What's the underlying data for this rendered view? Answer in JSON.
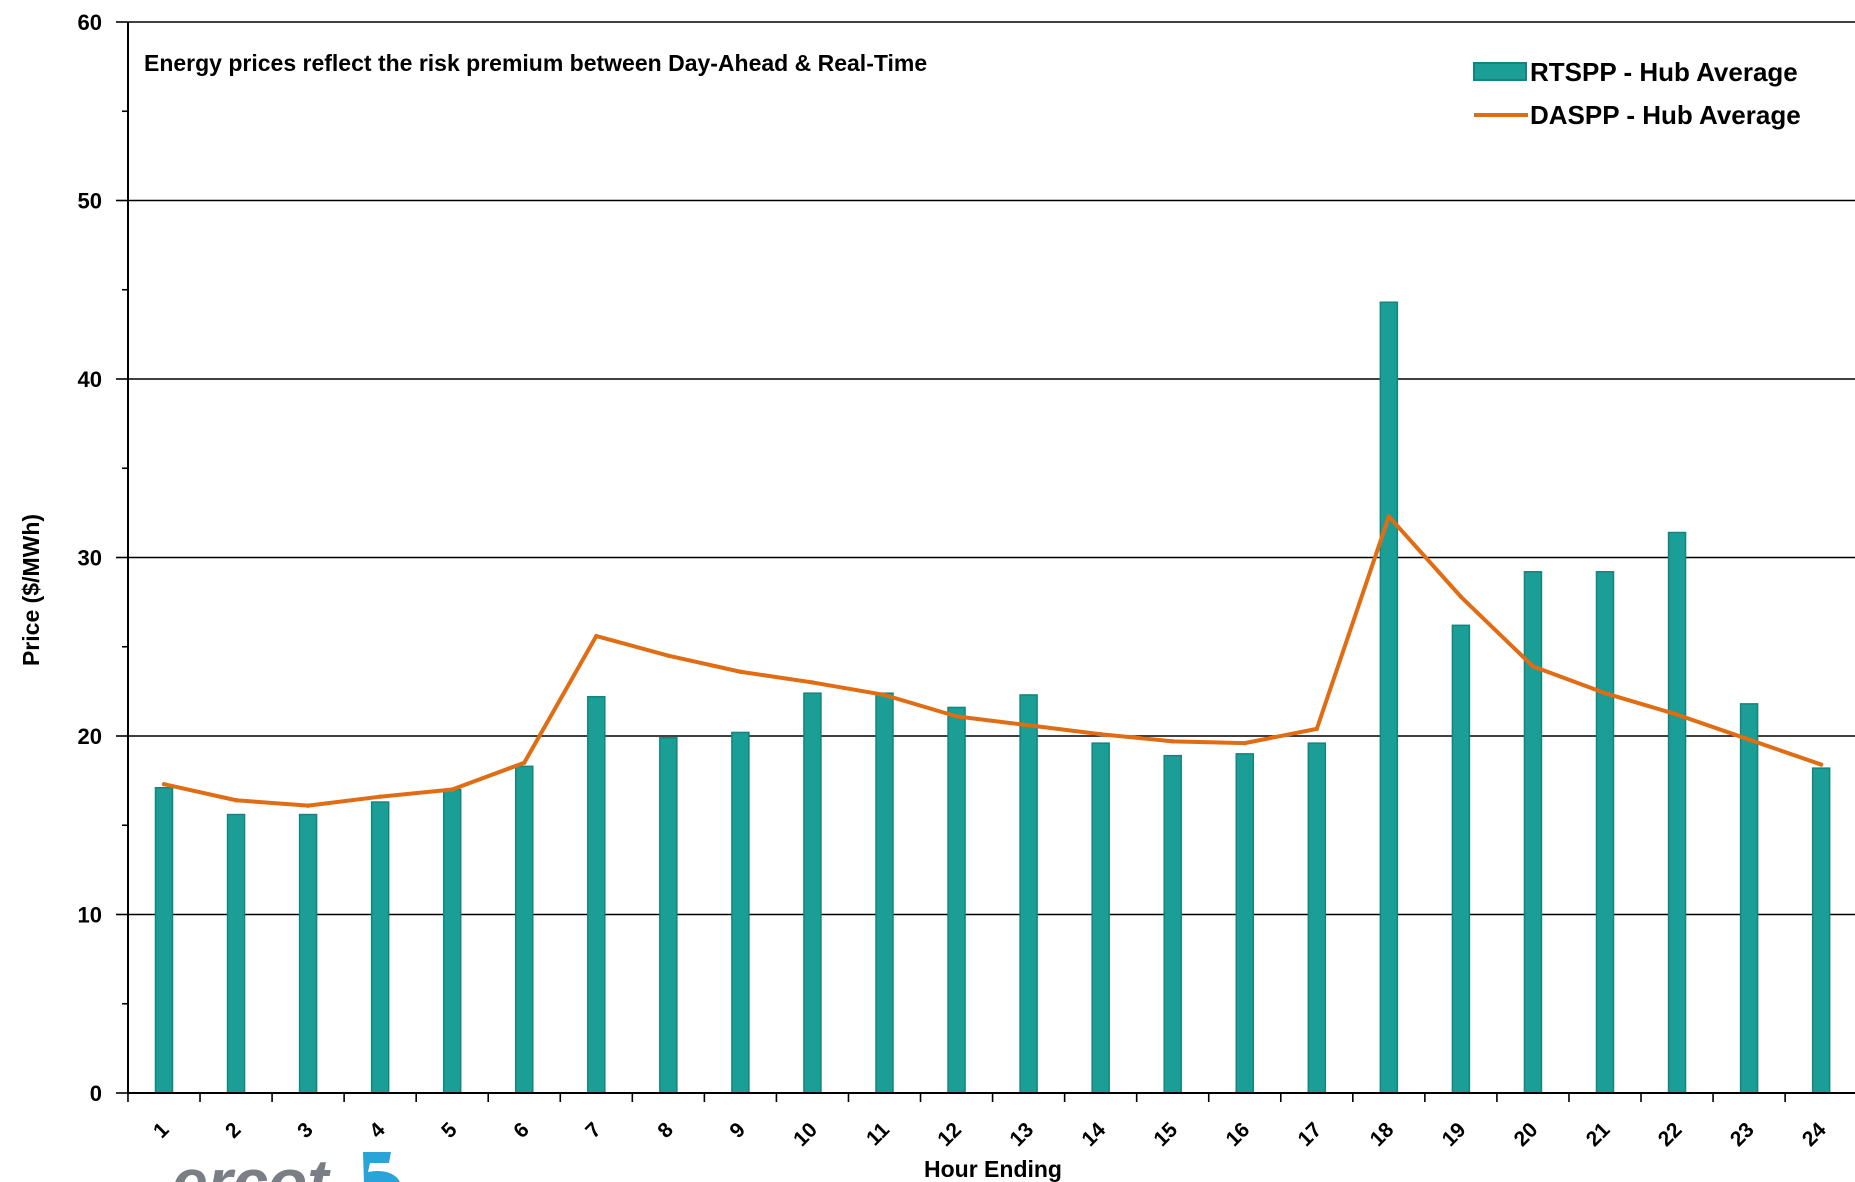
{
  "chart_data": {
    "type": "bar",
    "annotation": "Energy prices reflect the risk premium between Day-Ahead & Real-Time",
    "xlabel": "Hour Ending",
    "ylabel": "Price ($/MWh)",
    "ylim": [
      0,
      60
    ],
    "yticks": [
      0,
      10,
      20,
      30,
      40,
      50,
      60
    ],
    "grid": true,
    "legend_position": "top-right",
    "categories": [
      "1",
      "2",
      "3",
      "4",
      "5",
      "6",
      "7",
      "8",
      "9",
      "10",
      "11",
      "12",
      "13",
      "14",
      "15",
      "16",
      "17",
      "18",
      "19",
      "20",
      "21",
      "22",
      "23",
      "24"
    ],
    "series": [
      {
        "name": "RTSPP - Hub Average",
        "type": "bar",
        "color": "#1a9e96",
        "values": [
          17.1,
          15.6,
          15.6,
          16.3,
          17.0,
          18.3,
          22.2,
          19.9,
          20.2,
          22.4,
          22.4,
          21.6,
          22.3,
          19.6,
          18.9,
          19.0,
          19.6,
          44.3,
          26.2,
          29.2,
          29.2,
          31.4,
          21.8,
          18.2
        ]
      },
      {
        "name": "DASPP - Hub Average",
        "type": "line",
        "color": "#e06c13",
        "values": [
          17.3,
          16.4,
          16.1,
          16.6,
          17.0,
          18.5,
          25.6,
          24.5,
          23.6,
          23.0,
          22.3,
          21.1,
          20.6,
          20.1,
          19.7,
          19.6,
          20.4,
          32.3,
          27.8,
          23.9,
          22.4,
          21.2,
          19.8,
          18.4
        ]
      }
    ]
  },
  "logo": {
    "text": "ercot"
  }
}
